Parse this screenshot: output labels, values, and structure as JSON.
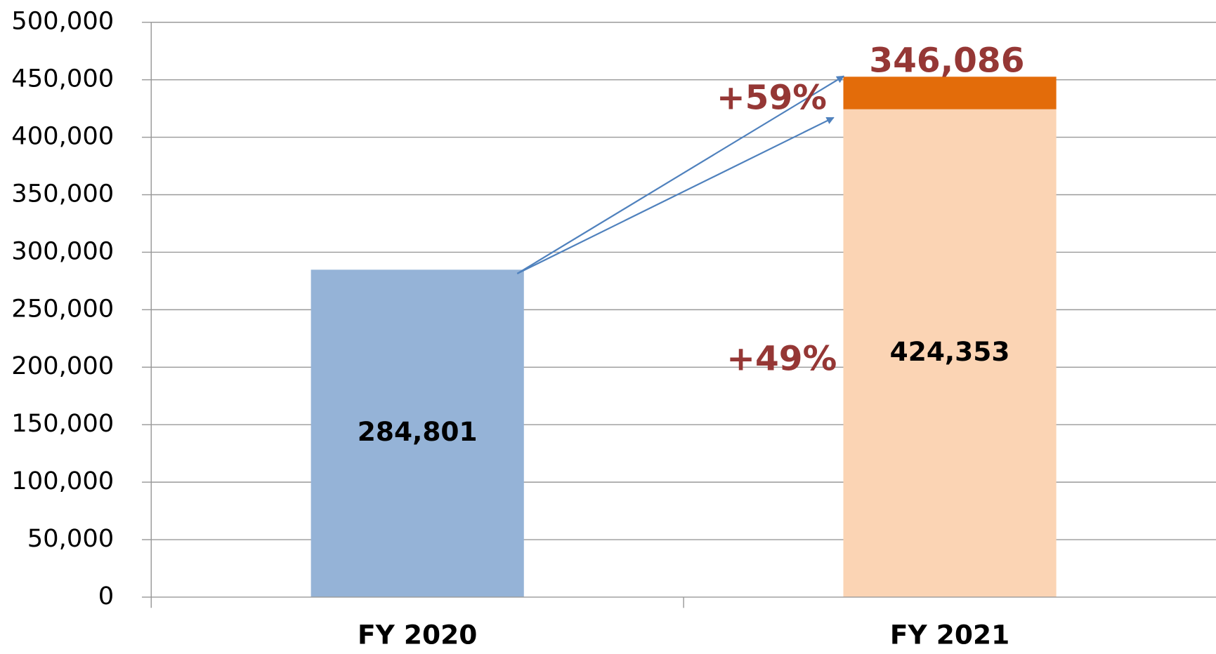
{
  "chart_data": {
    "type": "stacked-bar",
    "categories": [
      "FY 2020",
      "FY 2021"
    ],
    "series": [
      {
        "colors": [
          "#95b3d7",
          "#fbd4b4"
        ],
        "values": [
          284801,
          424353
        ],
        "value_labels": [
          "284,801",
          "424,353"
        ]
      },
      {
        "color": "#e36c0a",
        "values": [
          null,
          28300
        ]
      }
    ],
    "ylim": [
      0,
      500000
    ],
    "yticks": [
      0,
      {
        "value": 50000,
        "label": "50,000"
      },
      {
        "value": 100000,
        "label": "100,000"
      },
      {
        "value": 150000,
        "label": "150,000"
      },
      {
        "value": 200000,
        "label": "200,000"
      },
      {
        "value": 250000,
        "label": "250,000"
      },
      {
        "value": 300000,
        "label": "300,000"
      },
      {
        "value": 350000,
        "label": "350,000"
      },
      {
        "value": 400000,
        "label": "400,000"
      },
      {
        "value": 450000,
        "label": "450,000"
      },
      {
        "value": 500000,
        "label": "500,000"
      }
    ],
    "grid": true,
    "annotations": [
      "346,086",
      "+59%",
      "+49%"
    ]
  }
}
